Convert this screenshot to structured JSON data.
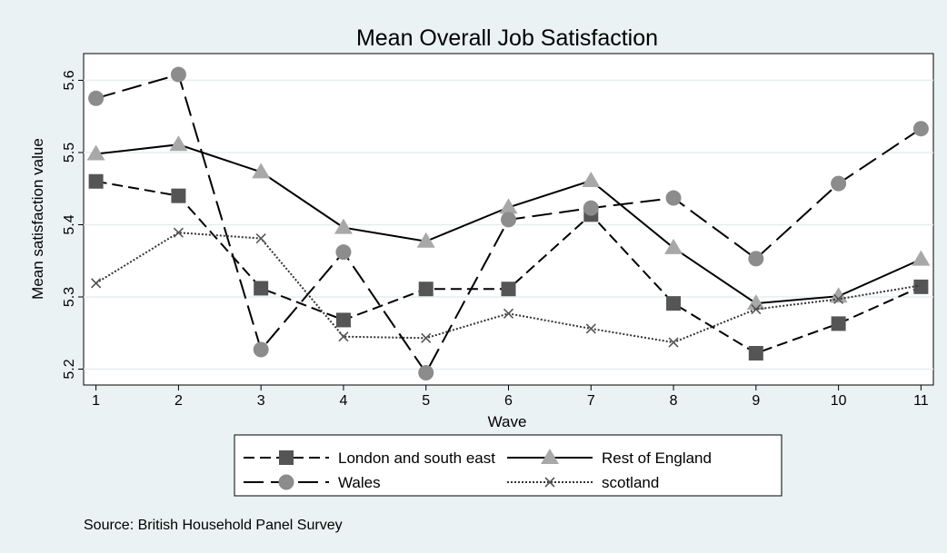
{
  "chart_data": {
    "type": "line",
    "title": "Mean Overall Job Satisfaction",
    "xlabel": "Wave",
    "ylabel": "Mean satisfaction value",
    "x": [
      1,
      2,
      3,
      4,
      5,
      6,
      7,
      8,
      9,
      10,
      11
    ],
    "x_ticks": [
      "1",
      "2",
      "3",
      "4",
      "5",
      "6",
      "7",
      "8",
      "9",
      "10",
      "11"
    ],
    "y_ticks": [
      "5.2",
      "5.3",
      "5.4",
      "5.5",
      "5.6"
    ],
    "y_tick_values": [
      5.2,
      5.3,
      5.4,
      5.5,
      5.6
    ],
    "xlim": [
      0.85,
      11.15
    ],
    "ylim": [
      5.178,
      5.637
    ],
    "grid": true,
    "legend_position": "bottom",
    "series": [
      {
        "name": "London and south east",
        "marker": "square",
        "dash": "dash",
        "color": "#555555",
        "values": [
          5.46,
          5.44,
          5.312,
          5.268,
          5.311,
          5.311,
          5.414,
          5.291,
          5.222,
          5.263,
          5.314
        ]
      },
      {
        "name": "Rest of England",
        "marker": "triangle",
        "dash": "solid",
        "color": "#a8a8a8",
        "values": [
          5.498,
          5.511,
          5.473,
          5.396,
          5.377,
          5.424,
          5.461,
          5.368,
          5.291,
          5.301,
          5.352
        ]
      },
      {
        "name": "Wales",
        "marker": "circle",
        "dash": "longdash",
        "color": "#8c8c8c",
        "values": [
          5.575,
          5.608,
          5.227,
          5.362,
          5.195,
          5.407,
          5.423,
          5.437,
          5.353,
          5.457,
          5.533
        ]
      },
      {
        "name": "scotland",
        "marker": "x",
        "dash": "dot",
        "color": "#555555",
        "values": [
          5.319,
          5.389,
          5.381,
          5.245,
          5.243,
          5.277,
          5.256,
          5.237,
          5.283,
          5.297,
          5.316
        ]
      }
    ],
    "note": "Source: British Household Panel Survey"
  }
}
